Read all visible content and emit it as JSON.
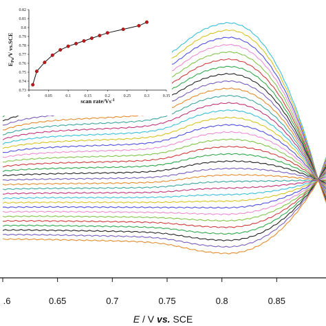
{
  "chart_data": [
    {
      "type": "line",
      "xlabel_parts": [
        "E",
        " / V ",
        "vs.",
        " SCE"
      ],
      "ylabel": "",
      "xlim": [
        0.6,
        0.895
      ],
      "xticks": [
        {
          "v": 0.6,
          "label": ".6"
        },
        {
          "v": 0.65,
          "label": "0.65"
        },
        {
          "v": 0.7,
          "label": "0.7"
        },
        {
          "v": 0.75,
          "label": "0.75"
        },
        {
          "v": 0.8,
          "label": "0.8"
        },
        {
          "v": 0.85,
          "label": "0.85"
        }
      ],
      "crossover": {
        "x": 0.888,
        "y": 0.0
      },
      "colors": [
        "#39bfd9",
        "#d9c21f",
        "#4f4fe0",
        "#ef8bd6",
        "#7fc64a",
        "#d13a3a",
        "#2fa84a",
        "#222222",
        "#7a5cbe",
        "#e58a2c",
        "#3aa5a0",
        "#c2327b"
      ],
      "description_series": "anodic sweep curves, one per scan rate, from top (fastest) to bottom (slowest)",
      "series_params": [
        {
          "start": 6.0,
          "plateau": 7.05,
          "wave": 2.6,
          "slope": 1.2
        },
        {
          "start": 5.7,
          "plateau": 6.7,
          "wave": 2.5,
          "slope": 1.15
        },
        {
          "start": 5.4,
          "plateau": 6.35,
          "wave": 2.4,
          "slope": 1.1
        },
        {
          "start": 5.1,
          "plateau": 6.0,
          "wave": 2.3,
          "slope": 1.05
        },
        {
          "start": 4.8,
          "plateau": 5.65,
          "wave": 2.2,
          "slope": 1.0
        },
        {
          "start": 4.5,
          "plateau": 5.3,
          "wave": 2.1,
          "slope": 0.95
        },
        {
          "start": 4.2,
          "plateau": 4.95,
          "wave": 2.0,
          "slope": 0.9
        },
        {
          "start": 3.9,
          "plateau": 4.6,
          "wave": 1.9,
          "slope": 0.85
        },
        {
          "start": 3.6,
          "plateau": 4.25,
          "wave": 1.8,
          "slope": 0.8
        },
        {
          "start": 3.3,
          "plateau": 3.9,
          "wave": 1.7,
          "slope": 0.75
        },
        {
          "start": 3.0,
          "plateau": 3.55,
          "wave": 1.6,
          "slope": 0.7
        },
        {
          "start": 2.7,
          "plateau": 3.2,
          "wave": 1.5,
          "slope": 0.65
        },
        {
          "start": 2.4,
          "plateau": 2.85,
          "wave": 1.4,
          "slope": 0.6
        },
        {
          "start": 2.1,
          "plateau": 2.5,
          "wave": 1.3,
          "slope": 0.55
        },
        {
          "start": 1.8,
          "plateau": 2.15,
          "wave": 1.2,
          "slope": 0.5
        },
        {
          "start": 1.5,
          "plateau": 1.8,
          "wave": 1.1,
          "slope": 0.45
        },
        {
          "start": 1.2,
          "plateau": 1.45,
          "wave": 1.0,
          "slope": 0.4
        },
        {
          "start": 0.9,
          "plateau": 1.1,
          "wave": 0.9,
          "slope": 0.35
        },
        {
          "start": 0.6,
          "plateau": 0.75,
          "wave": 0.8,
          "slope": 0.3
        },
        {
          "start": 0.3,
          "plateau": 0.4,
          "wave": 0.7,
          "slope": 0.25
        },
        {
          "start": 0.0,
          "plateau": 0.05,
          "wave": 0.6,
          "slope": 0.2
        },
        {
          "start": -0.3,
          "plateau": -0.25,
          "wave": 0.5,
          "slope": 0.15
        },
        {
          "start": -0.6,
          "plateau": -0.55,
          "wave": 0.4,
          "slope": 0.1
        },
        {
          "start": -0.9,
          "plateau": -0.85,
          "wave": 0.3,
          "slope": 0.05
        },
        {
          "start": -1.2,
          "plateau": -1.15,
          "wave": 0.2,
          "slope": 0.0
        },
        {
          "start": -1.5,
          "plateau": -1.45,
          "wave": 0.1,
          "slope": -0.05
        },
        {
          "start": -1.8,
          "plateau": -1.75,
          "wave": 0.0,
          "slope": -0.1
        },
        {
          "start": -2.1,
          "plateau": -2.05,
          "wave": -0.1,
          "slope": -0.15
        },
        {
          "start": -2.4,
          "plateau": -2.35,
          "wave": -0.2,
          "slope": -0.2
        },
        {
          "start": -2.7,
          "plateau": -2.65,
          "wave": -0.3,
          "slope": -0.25
        },
        {
          "start": -3.0,
          "plateau": -2.95,
          "wave": -0.4,
          "slope": -0.3
        },
        {
          "start": -3.3,
          "plateau": -3.25,
          "wave": -0.5,
          "slope": -0.35
        },
        {
          "start": -3.6,
          "plateau": -3.55,
          "wave": -0.6,
          "slope": -0.4
        },
        {
          "start": -3.9,
          "plateau": -3.85,
          "wave": -0.7,
          "slope": -0.45
        }
      ]
    },
    {
      "type": "scatter",
      "inset": true,
      "xlabel": "scan rate/Vs",
      "xlabel_sup": "-1",
      "ylabel": "E",
      "ylabel_sub": "Pa",
      "ylabel_rest": "/V vs.SCE",
      "xlim": [
        0,
        0.35
      ],
      "ylim": [
        0.73,
        0.82
      ],
      "xticks": [
        0,
        0.05,
        0.1,
        0.15,
        0.2,
        0.25,
        0.3,
        0.35
      ],
      "xtick_labels": [
        "0",
        "0.05",
        "0.1",
        "0.15",
        "0.2",
        "0.25",
        "0.3",
        "0.35"
      ],
      "yticks": [
        0.73,
        0.74,
        0.75,
        0.76,
        0.77,
        0.78,
        0.79,
        0.8,
        0.81,
        0.82
      ],
      "ytick_labels": [
        "0.73",
        "0.74",
        "0.75",
        "0.76",
        "0.77",
        "0.78",
        "0.79",
        "0.8",
        "0.81",
        "0.82"
      ],
      "x": [
        0.01,
        0.02,
        0.04,
        0.06,
        0.08,
        0.1,
        0.12,
        0.14,
        0.16,
        0.18,
        0.2,
        0.24,
        0.28,
        0.3
      ],
      "y": [
        0.736,
        0.751,
        0.761,
        0.769,
        0.775,
        0.779,
        0.782,
        0.785,
        0.788,
        0.791,
        0.794,
        0.798,
        0.802,
        0.806
      ],
      "marker_color": "#c01818",
      "line_color": "#111111"
    }
  ]
}
